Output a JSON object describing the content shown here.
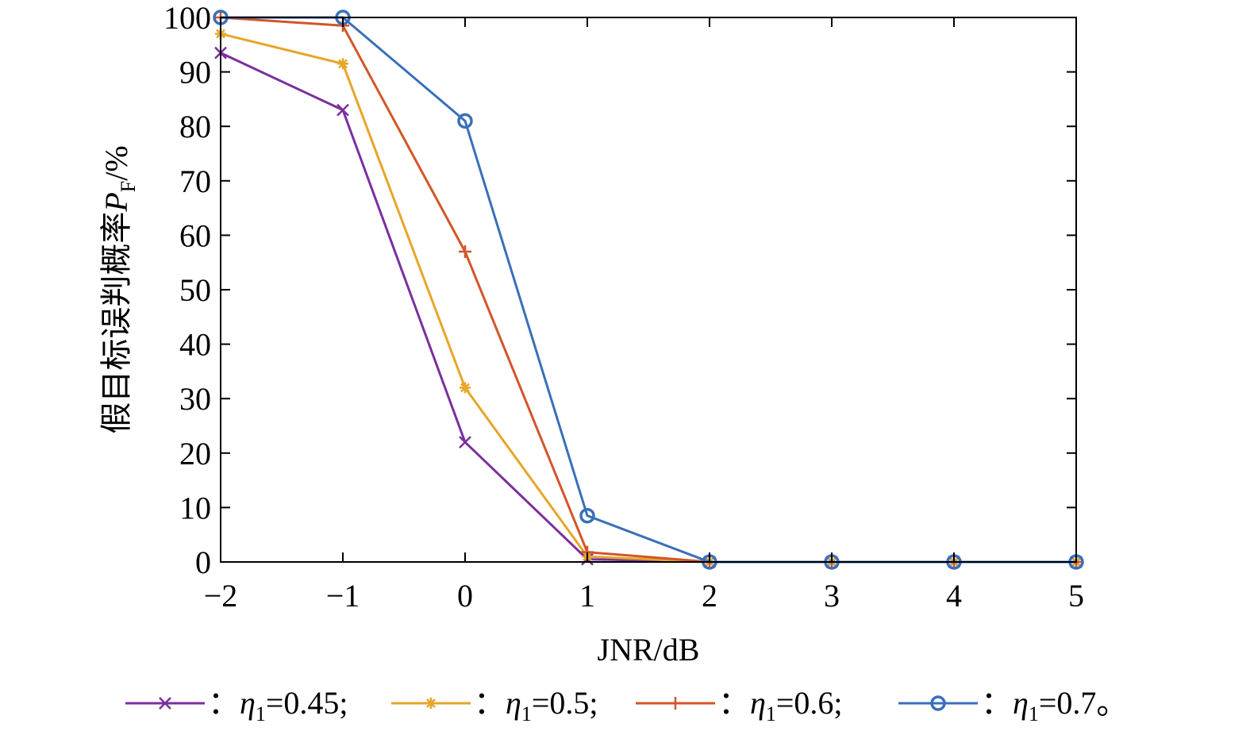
{
  "chart_data": {
    "type": "line",
    "xlabel": "JNR/dB",
    "ylabel": {
      "main": "假目标误判概率",
      "symbol": "P",
      "subscript": "F",
      "unit": "/%"
    },
    "x": [
      -2,
      -1,
      0,
      1,
      2,
      3,
      4,
      5
    ],
    "xticks": [
      "−2",
      "−1",
      "0",
      "1",
      "2",
      "3",
      "4",
      "5"
    ],
    "yticks": [
      "0",
      "10",
      "20",
      "30",
      "40",
      "50",
      "60",
      "70",
      "80",
      "90",
      "100"
    ],
    "xlim": [
      -2,
      5
    ],
    "ylim": [
      0,
      100
    ],
    "grid": false,
    "legend_position": "bottom",
    "series": [
      {
        "name": "η1=0.45",
        "legend_prefix": "：",
        "legend_eta": "η",
        "legend_sub": "1",
        "legend_rest": "=0.45;",
        "marker": "x",
        "color": "#7B2F9E",
        "values": [
          93.5,
          83,
          22,
          0.5,
          0,
          0,
          0,
          0
        ]
      },
      {
        "name": "η1=0.5",
        "legend_prefix": "：",
        "legend_eta": "η",
        "legend_sub": "1",
        "legend_rest": "=0.5;",
        "marker": "asterisk",
        "color": "#E6A628",
        "values": [
          97,
          91.5,
          32,
          1,
          0,
          0,
          0,
          0
        ]
      },
      {
        "name": "η1=0.6",
        "legend_prefix": "：",
        "legend_eta": "η",
        "legend_sub": "1",
        "legend_rest": "=0.6;",
        "marker": "plus",
        "color": "#D35528",
        "values": [
          100,
          98.5,
          57,
          1.8,
          0,
          0,
          0,
          0
        ]
      },
      {
        "name": "η1=0.7",
        "legend_prefix": "：",
        "legend_eta": "η",
        "legend_sub": "1",
        "legend_rest": "=0.7。",
        "marker": "circle",
        "color": "#3A6FB8",
        "values": [
          100,
          100,
          81,
          8.5,
          0,
          0,
          0,
          0
        ]
      }
    ]
  }
}
